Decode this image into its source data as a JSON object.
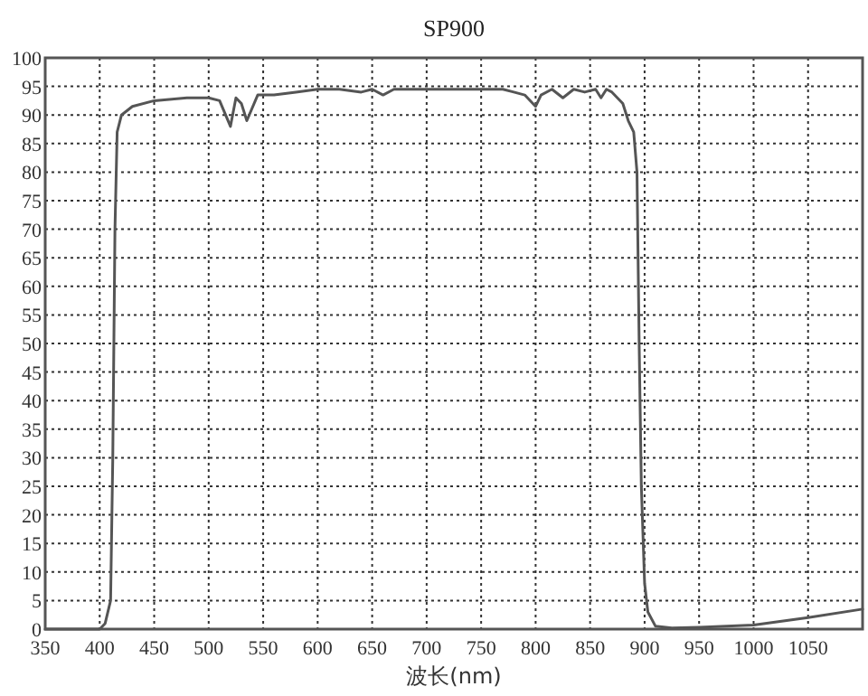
{
  "chart_data": {
    "type": "line",
    "title": "SP900",
    "xlabel": "波长(nm)",
    "x": [
      350,
      400,
      405,
      410,
      412,
      414,
      416,
      420,
      430,
      450,
      480,
      500,
      510,
      520,
      525,
      530,
      535,
      545,
      560,
      580,
      600,
      620,
      640,
      650,
      660,
      670,
      690,
      720,
      750,
      770,
      780,
      790,
      800,
      805,
      815,
      825,
      835,
      845,
      855,
      860,
      865,
      870,
      875,
      880,
      885,
      890,
      893,
      895,
      897,
      900,
      903,
      910,
      925,
      950,
      1000,
      1050,
      1100
    ],
    "series": [
      {
        "color": "#555555",
        "values": [
          0,
          0,
          1,
          5,
          30,
          70,
          87,
          90,
          91.5,
          92.5,
          93,
          93,
          92.5,
          88,
          93,
          92,
          89,
          93.5,
          93.5,
          94,
          94.5,
          94.5,
          94,
          94.5,
          93.5,
          94.5,
          94.5,
          94.5,
          94.5,
          94.5,
          94,
          93.5,
          91.5,
          93.5,
          94.5,
          93,
          94.5,
          94,
          94.5,
          93,
          94.5,
          94,
          93,
          92,
          89,
          87,
          80,
          50,
          25,
          8,
          3,
          0.5,
          0.2,
          0.3,
          0.7,
          2,
          3.5
        ]
      }
    ],
    "xlim": [
      350,
      1100
    ],
    "ylim": [
      0,
      100
    ],
    "xticks": [
      350,
      400,
      450,
      500,
      550,
      600,
      650,
      700,
      750,
      800,
      850,
      900,
      950,
      1000,
      1050
    ],
    "yticks": [
      0,
      5,
      10,
      15,
      20,
      25,
      30,
      35,
      40,
      45,
      50,
      55,
      60,
      65,
      70,
      75,
      80,
      85,
      90,
      95,
      100
    ],
    "grid": true,
    "line_style": "solid",
    "marker": "none"
  }
}
